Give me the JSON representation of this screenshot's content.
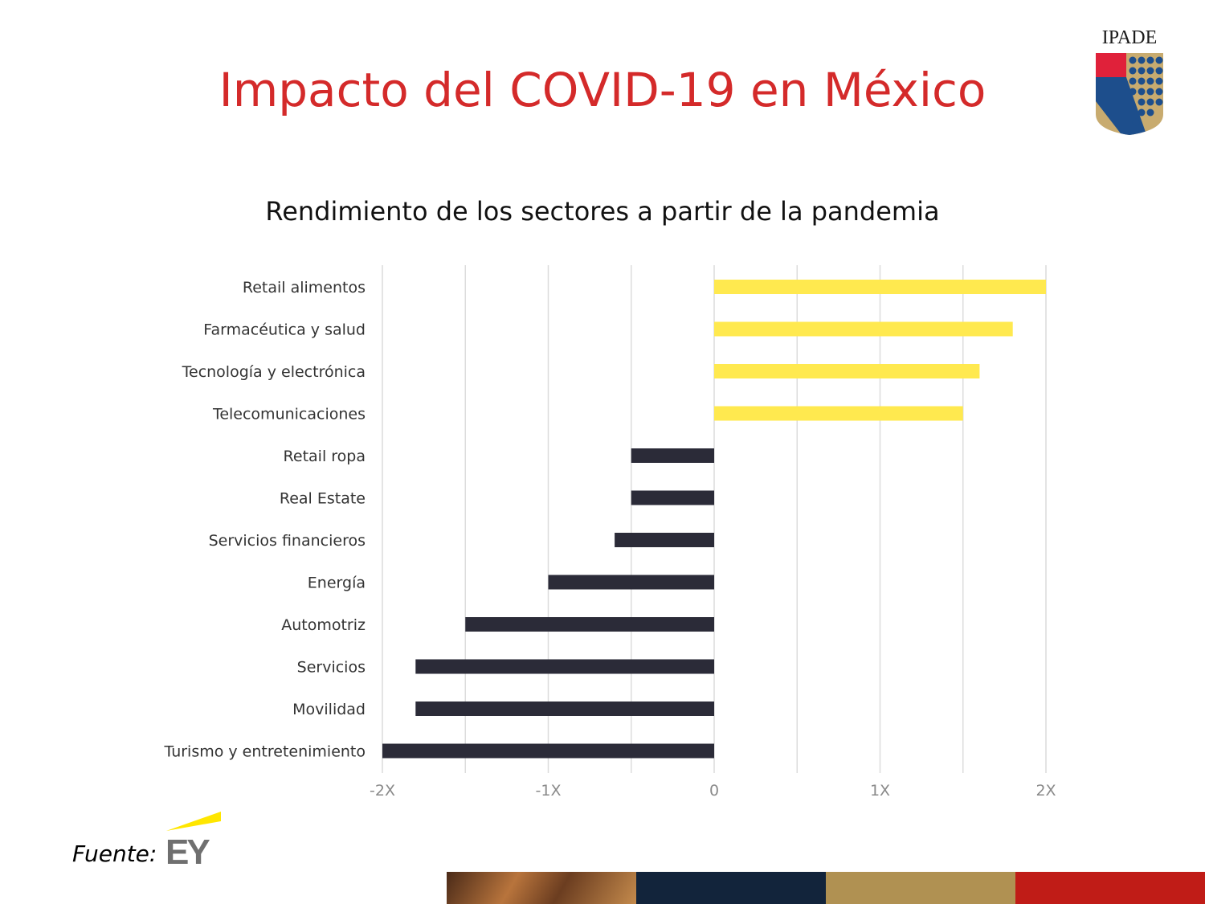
{
  "slide": {
    "title": "Impacto del COVID-19 en México",
    "logo_text": "IPADE",
    "source_label": "Fuente:",
    "source_logo_text": "EY"
  },
  "colors": {
    "title": "#d42a2a",
    "positive_bar": "#ffe94f",
    "negative_bar": "#2b2b38",
    "gridline": "#dcdcdc",
    "band_navy": "#12243b",
    "band_gold": "#b09152",
    "band_red": "#c01c17"
  },
  "chart_data": {
    "type": "bar",
    "orientation": "horizontal",
    "title": "Rendimiento de los sectores a partir de la pandemia",
    "categories": [
      "Retail alimentos",
      "Farmacéutica  y salud",
      "Tecnología y electrónica",
      "Telecomunicaciones",
      "Retail ropa",
      "Real Estate",
      "Servicios financieros",
      "Energía",
      "Automotriz",
      "Servicios",
      "Movilidad",
      "Turismo y entretenimiento"
    ],
    "values": [
      2.0,
      1.8,
      1.6,
      1.5,
      -0.5,
      -0.5,
      -0.6,
      -1.0,
      -1.5,
      -1.8,
      -1.8,
      -2.0
    ],
    "xlim": [
      -2,
      2
    ],
    "x_ticks": [
      -2,
      -1,
      0,
      1,
      2
    ],
    "x_tick_labels": [
      "-2X",
      "-1X",
      "0",
      "1X",
      "2X"
    ],
    "grid": true,
    "legend": "none"
  }
}
